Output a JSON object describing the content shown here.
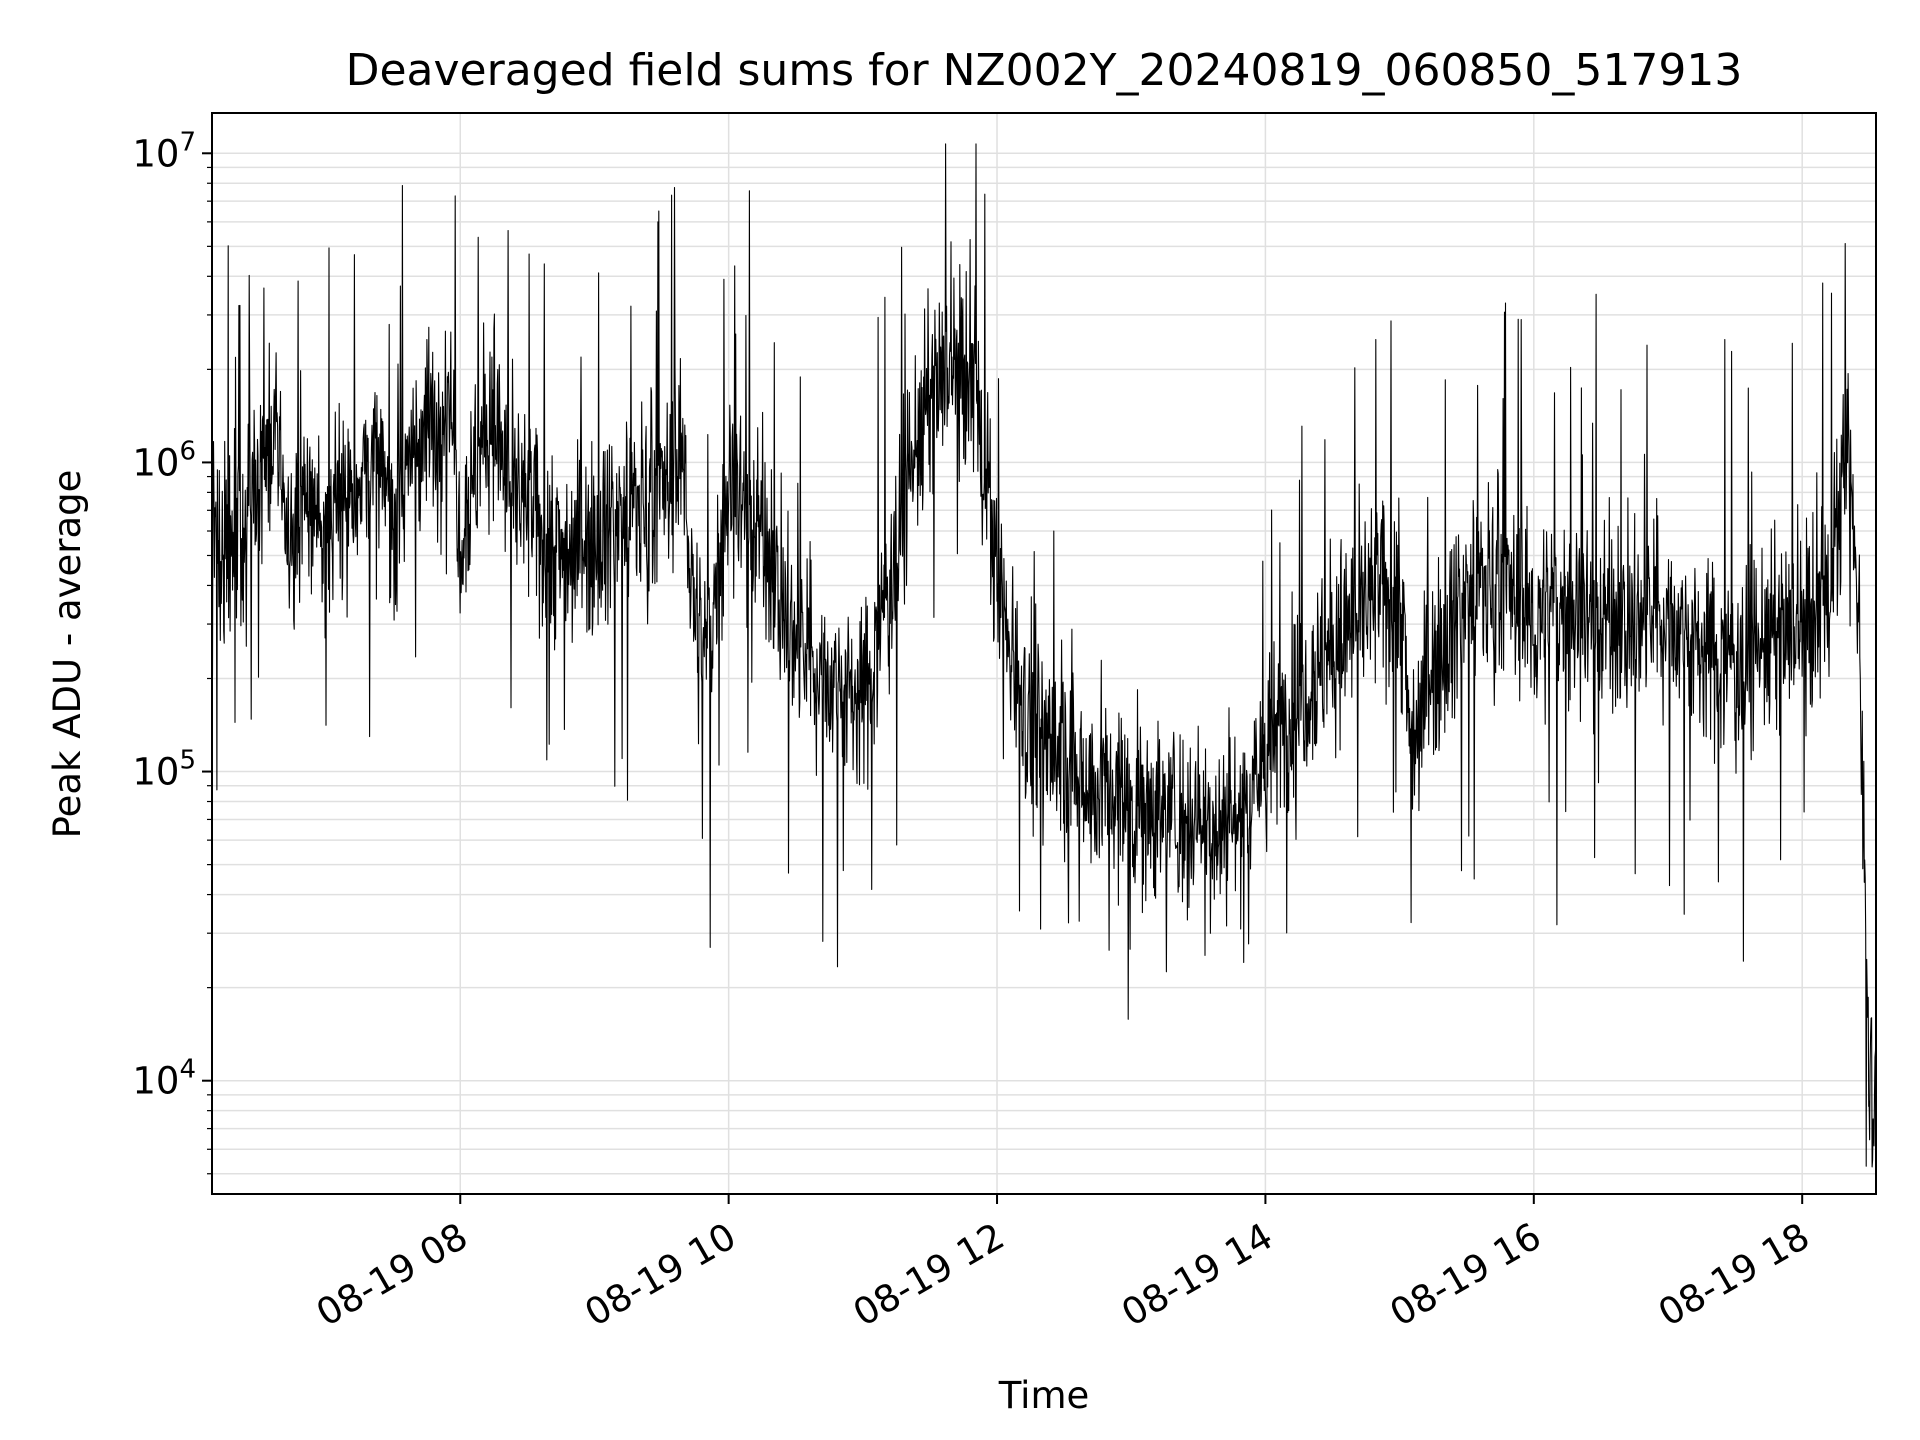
{
  "chart_data": {
    "type": "line",
    "title": "Deaveraged field sums for NZ002Y_20240819_060850_517913",
    "xlabel": "Time",
    "ylabel": "Peak ADU - average",
    "x_scale": "time",
    "y_scale": "log",
    "xlim": [
      "2024-08-19 06:09",
      "2024-08-19 18:33"
    ],
    "ylim": [
      4300,
      13500000
    ],
    "x_ticks": [
      "08-19 08",
      "08-19 10",
      "08-19 12",
      "08-19 14",
      "08-19 16",
      "08-19 18"
    ],
    "x_tick_values": [
      "2024-08-19 08:00",
      "2024-08-19 10:00",
      "2024-08-19 12:00",
      "2024-08-19 14:00",
      "2024-08-19 16:00",
      "2024-08-19 18:00"
    ],
    "y_ticks": [
      {
        "base": "10",
        "exp": "4",
        "value": 10000
      },
      {
        "base": "10",
        "exp": "5",
        "value": 100000
      },
      {
        "base": "10",
        "exp": "6",
        "value": 1000000
      },
      {
        "base": "10",
        "exp": "7",
        "value": 10000000
      }
    ],
    "grid": true,
    "line_color": "#000000",
    "grid_color": "#e0e0e0",
    "series": [
      {
        "x": [
          "06:09",
          "06:15",
          "06:20",
          "06:25",
          "06:30",
          "06:35",
          "06:40",
          "06:45",
          "06:50",
          "06:55",
          "07:00",
          "07:10",
          "07:20",
          "07:30",
          "07:40",
          "07:50",
          "07:55",
          "08:00",
          "08:10",
          "08:15",
          "08:20",
          "08:30",
          "08:45",
          "09:00",
          "09:15",
          "09:30",
          "09:40",
          "09:45",
          "09:50",
          "10:00",
          "10:15",
          "10:30",
          "10:45",
          "11:00",
          "11:10",
          "11:20",
          "11:30",
          "11:40",
          "11:50",
          "12:00",
          "12:15",
          "12:30",
          "12:45",
          "13:00",
          "13:15",
          "13:30",
          "13:45",
          "14:00",
          "14:15",
          "14:30",
          "14:45",
          "15:00",
          "15:05",
          "15:15",
          "15:30",
          "15:45",
          "16:00",
          "16:15",
          "16:30",
          "16:45",
          "17:00",
          "17:15",
          "17:30",
          "17:45",
          "18:00",
          "18:10",
          "18:15",
          "18:20",
          "18:25",
          "18:30",
          "18:33"
        ],
        "y": [
          750000,
          500000,
          550000,
          700000,
          1000000,
          1100000,
          900000,
          500000,
          700000,
          750000,
          550000,
          800000,
          1000000,
          700000,
          1200000,
          1300000,
          2000000,
          600000,
          1200000,
          1500000,
          900000,
          700000,
          500000,
          600000,
          700000,
          800000,
          1000000,
          300000,
          220000,
          900000,
          600000,
          250000,
          200000,
          170000,
          350000,
          900000,
          1600000,
          2000000,
          1800000,
          400000,
          140000,
          110000,
          90000,
          80000,
          75000,
          70000,
          68000,
          110000,
          180000,
          250000,
          350000,
          400000,
          120000,
          230000,
          380000,
          420000,
          300000,
          350000,
          320000,
          300000,
          320000,
          250000,
          230000,
          270000,
          280000,
          350000,
          500000,
          1200000,
          400000,
          11000,
          10000
        ]
      }
    ]
  }
}
